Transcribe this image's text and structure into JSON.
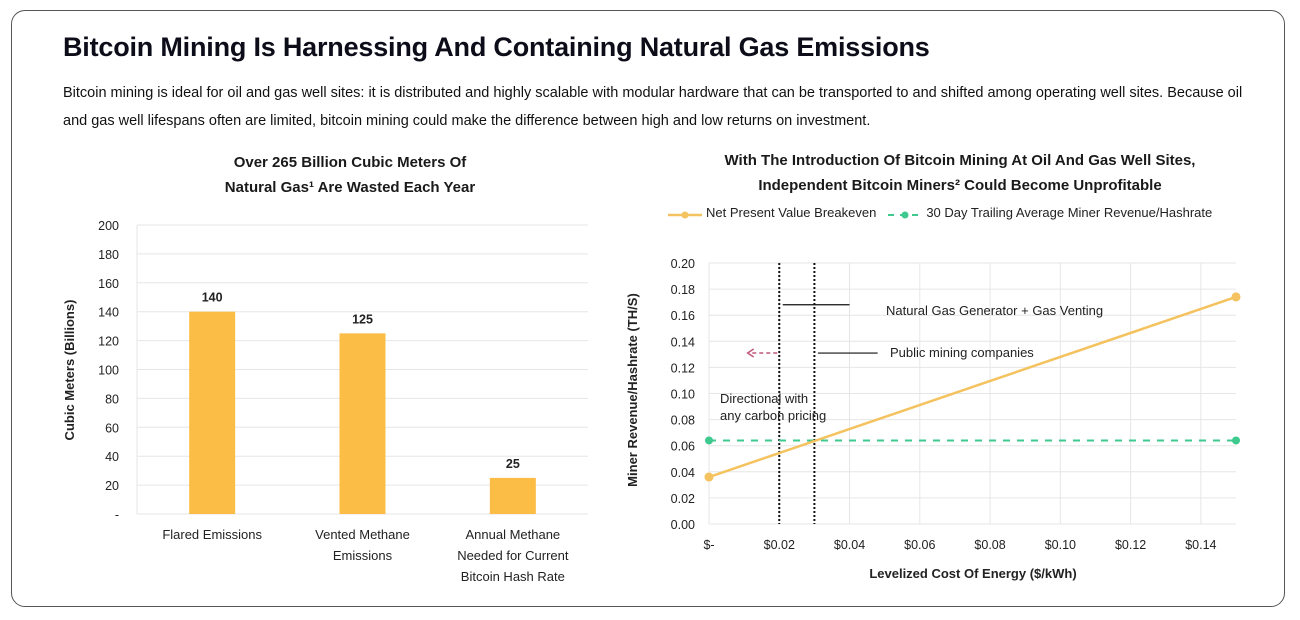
{
  "header": {
    "title": "Bitcoin Mining Is Harnessing And Containing Natural Gas Emissions",
    "subtitle": "Bitcoin mining is ideal for oil and gas well sites: it is distributed and highly scalable with modular hardware that can be transported to and shifted among operating well sites. Because oil and gas well lifespans often are limited, bitcoin mining could make the difference between high and low returns on investment."
  },
  "colors": {
    "bar": "#fbbd45",
    "npv_line": "#f4c25e",
    "trailing_line": "#3ec98e",
    "arrow": "#c0587a",
    "grid": "#e6e6e6"
  },
  "chart_data": [
    {
      "type": "bar",
      "title_line1": "Over 265 Billion Cubic Meters Of",
      "title_line2": "Natural Gas¹ Are Wasted Each Year",
      "xlabel": "",
      "ylabel": "Cubic Meters (Billions)",
      "ylim": [
        0,
        200
      ],
      "yticks": [
        0,
        20,
        40,
        60,
        80,
        100,
        120,
        140,
        160,
        180,
        200
      ],
      "ytick_labels": [
        "-",
        "20",
        "40",
        "60",
        "80",
        "100",
        "120",
        "140",
        "160",
        "180",
        "200"
      ],
      "grid": true,
      "categories": [
        [
          "Flared Emissions"
        ],
        [
          "Vented Methane",
          "Emissions"
        ],
        [
          "Annual Methane",
          "Needed for Current",
          "Bitcoin Hash Rate"
        ]
      ],
      "values": [
        140,
        125,
        25
      ],
      "data_labels": [
        "140",
        "125",
        "25"
      ]
    },
    {
      "type": "line",
      "title_line1": "With The Introduction Of Bitcoin Mining At Oil And Gas Well Sites,",
      "title_line2": "Independent Bitcoin Miners² Could Become Unprofitable",
      "xlabel": "Levelized Cost Of Energy ($/kWh)",
      "ylabel": "Miner Revenue/Hashrate (TH/S)",
      "xlim": [
        0,
        0.15
      ],
      "ylim": [
        0,
        0.2
      ],
      "xticks": [
        0,
        0.02,
        0.04,
        0.06,
        0.08,
        0.1,
        0.12,
        0.14
      ],
      "xtick_labels": [
        "$-",
        "$0.02",
        "$0.04",
        "$0.06",
        "$0.08",
        "$0.10",
        "$0.12",
        "$0.14"
      ],
      "yticks": [
        0,
        0.02,
        0.04,
        0.06,
        0.08,
        0.1,
        0.12,
        0.14,
        0.16,
        0.18,
        0.2
      ],
      "ytick_labels": [
        "0.00",
        "0.02",
        "0.04",
        "0.06",
        "0.08",
        "0.10",
        "0.12",
        "0.14",
        "0.16",
        "0.18",
        "0.20"
      ],
      "grid": true,
      "legend_position": "top",
      "series": [
        {
          "name": "Net Present Value Breakeven",
          "style": "solid",
          "x": [
            0,
            0.15
          ],
          "y": [
            0.036,
            0.174
          ]
        },
        {
          "name": "30 Day Trailing Average Miner Revenue/Hashrate",
          "style": "dashed",
          "x": [
            0,
            0.15
          ],
          "y": [
            0.064,
            0.064
          ]
        }
      ],
      "vertical_lines": [
        {
          "x": 0.02,
          "style": "dotted"
        },
        {
          "x": 0.03,
          "style": "dotted"
        }
      ],
      "annotations": [
        {
          "text": "Natural Gas Generator + Gas Venting",
          "leader": {
            "x1": 0.021,
            "x2": 0.04,
            "y": 0.168
          }
        },
        {
          "text": "Public mining companies",
          "leader": {
            "x1": 0.031,
            "x2": 0.048,
            "y": 0.131
          }
        },
        {
          "text_lines": [
            "Directional with",
            "any carbon pricing"
          ],
          "x": 0.004,
          "y": 0.095
        },
        {
          "arrow": "left",
          "from_x": 0.02,
          "to_x": 0.011,
          "y": 0.131
        }
      ]
    }
  ]
}
